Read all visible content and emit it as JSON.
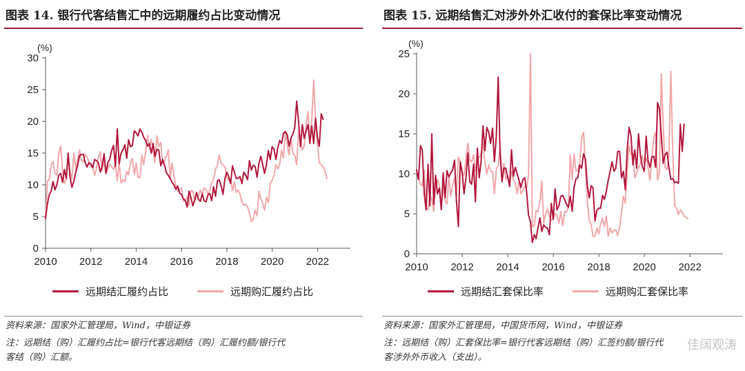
{
  "left": {
    "title": "图表 14. 银行代客结售汇中的远期履约占比变动情况",
    "source": "资料来源：国家外汇管理局，Wind，中银证券",
    "note_line1": "注：远期结（购）汇履约占比=银行代客远期结（购）汇履约额/银行代",
    "note_line2": "客结（购）汇额。"
  },
  "right": {
    "title": "图表 15. 远期结售汇对涉外外汇收付的套保比率变动情况",
    "source": "资料来源：国家外汇管理局，中国货币网，Wind，中银证券",
    "note_line1": "注：远期结（购）汇套保比率=银行代客远期结（购）汇签约额/银行代",
    "note_line2": "客涉外外币收入（支出）。"
  },
  "watermark": "佳阔观涛",
  "chart_data": [
    {
      "type": "line",
      "ylabel": "(%)",
      "ylim": [
        0,
        30
      ],
      "yticks": [
        0,
        5,
        10,
        15,
        20,
        25,
        30
      ],
      "xlim": [
        2010,
        2023.45
      ],
      "xticks": [
        2010,
        2012,
        2014,
        2016,
        2018,
        2020,
        2022
      ],
      "grid": false,
      "legend_position": "bottom",
      "series": [
        {
          "name": "远期结汇履约占比",
          "color": "#b0173b",
          "x_start": 2010,
          "x_step": 0.0833,
          "values": [
            4.7,
            7,
            8.5,
            9,
            10.5,
            9.2,
            10,
            11.5,
            11.8,
            10.4,
            12.4,
            11,
            15,
            11.2,
            9.6,
            10.6,
            12,
            13,
            14.6,
            14.8,
            14.8,
            13.5,
            12.8,
            13.5,
            13.3,
            12.7,
            14,
            13.8,
            13.5,
            12,
            13,
            14.9,
            11.8,
            13.5,
            14,
            15.4,
            16.2,
            12.9,
            18.8,
            13.3,
            15,
            15.5,
            16.3,
            14.2,
            17.1,
            16,
            16.2,
            18.5,
            18.2,
            17.7,
            18.8,
            18.3,
            17.5,
            17,
            16.1,
            16.5,
            15,
            16.5,
            14.5,
            15.6,
            15.5,
            13,
            14,
            13.1,
            11.9,
            11.5,
            11,
            10.4,
            10,
            9.3,
            9.8,
            8.7,
            8.5,
            7.8,
            7.5,
            6.5,
            9,
            8,
            6.7,
            7.6,
            8.8,
            7.7,
            7.4,
            8.6,
            7.5,
            7.3,
            8.4,
            8.6,
            7.5,
            9.7,
            8.2,
            10.6,
            10.8,
            9.8,
            8.5,
            11,
            12,
            11.3,
            10.2,
            13,
            12,
            11,
            11,
            11.3,
            10.2,
            12,
            11.5,
            10.8,
            13.8,
            12.3,
            13.1,
            12.9,
            11.2,
            13.3,
            14.5,
            13.2,
            11.8,
            13.2,
            15.4,
            14,
            16,
            15.6,
            14,
            15.8,
            17,
            16.5,
            18.1,
            18.4,
            17.9,
            16.1,
            17.4,
            18,
            19,
            23.2,
            20,
            16,
            19.5,
            17.3,
            18.5,
            19.5,
            16.5,
            19.3,
            16.5,
            20.5,
            17.5,
            16.1,
            21.2,
            20.3
          ]
        },
        {
          "name": "远期购汇履约占比",
          "color": "#f1a7a9",
          "x_start": 2010,
          "x_step": 0.0833,
          "values": [
            4.8,
            10.5,
            10.9,
            13.2,
            13.7,
            11.8,
            11.5,
            15,
            16.1,
            12.3,
            10.2,
            10.8,
            14.3,
            12,
            11,
            15,
            12.5,
            14,
            15.5,
            13.9,
            13.6,
            14.8,
            14.3,
            13.6,
            12.8,
            13,
            11.5,
            12.6,
            14.3,
            15.2,
            12.2,
            13.9,
            11.7,
            12.5,
            13.3,
            12.8,
            12.5,
            13.2,
            10.7,
            13.4,
            10.3,
            10.8,
            10.5,
            12.1,
            11.6,
            13.5,
            14.2,
            11.6,
            13.4,
            11.2,
            11.1,
            14.7,
            13.2,
            15.2,
            17.8,
            15.7,
            17.2,
            15.3,
            13.5,
            17.7,
            16,
            16.7,
            13.3,
            13.8,
            14.5,
            15.5,
            11,
            13.4,
            11.5,
            9.8,
            8.9,
            9.2,
            9.5,
            7.4,
            7.6,
            8.1,
            6.8,
            9.1,
            9,
            7.4,
            8.5,
            8.2,
            9.2,
            8.5,
            9.5,
            9.3,
            8.5,
            9.1,
            10.3,
            10.8,
            12.5,
            13,
            14.7,
            13.5,
            13.1,
            12.8,
            11.2,
            10.7,
            10.8,
            9.1,
            10.5,
            8.8,
            9.2,
            8.5,
            7.3,
            6.8,
            6.9,
            6.5,
            5.7,
            4.2,
            4.6,
            6,
            5.1,
            9,
            7.8,
            7.1,
            6,
            8,
            7.2,
            10.2,
            10.7,
            11.5,
            13.2,
            12.5,
            13.2,
            15.5,
            14.2,
            18.4,
            16.5,
            14.7,
            17.4,
            15,
            14.7,
            13.2,
            18.5,
            17.3,
            15.5,
            16.1,
            19.5,
            21.5,
            17.3,
            20.3,
            26.5,
            19.8,
            16.5,
            13.5,
            13.2,
            12.8,
            12.2,
            11
          ]
        }
      ]
    },
    {
      "type": "line",
      "ylabel": "(%)",
      "ylim": [
        0,
        25
      ],
      "yticks": [
        0,
        5,
        10,
        15,
        20,
        25
      ],
      "xlim": [
        2010,
        2023.45
      ],
      "xticks": [
        2010,
        2012,
        2014,
        2016,
        2018,
        2020,
        2022
      ],
      "grid": false,
      "legend_position": "bottom",
      "series": [
        {
          "name": "远期结汇套保比率",
          "color": "#b0173b",
          "x_start": 2010,
          "x_step": 0.0833,
          "values": [
            10.5,
            9.3,
            13.5,
            13,
            7.5,
            5.5,
            11.2,
            6,
            15,
            6.2,
            9.8,
            7.5,
            8.2,
            5.5,
            10.1,
            7,
            10.4,
            9.6,
            10.1,
            10.5,
            11.7,
            6.6,
            3.4,
            11.5,
            10.2,
            7.5,
            9.5,
            12.6,
            9,
            8.7,
            11.2,
            6.5,
            13.2,
            9.5,
            11.6,
            16,
            12.9,
            15.8,
            15.2,
            13.8,
            15.7,
            11.5,
            14.7,
            22.1,
            12.5,
            9,
            10.7,
            10.7,
            9.6,
            8.4,
            13,
            9.7,
            10.8,
            10,
            9.2,
            8.3,
            9.3,
            9.5,
            7.7,
            4.8,
            4,
            1.4,
            2.4,
            1.9,
            3.3,
            4.5,
            2.8,
            3.6,
            3.3,
            3.2,
            2.4,
            6.3,
            4.3,
            8.1,
            5.5,
            6,
            7.2,
            7.3,
            6.8,
            6.2,
            5.8,
            7.2,
            5.3,
            8.3,
            9.4,
            9.5,
            11.1,
            10.7,
            12.5,
            11.8,
            8.5,
            7,
            8.5,
            8.2,
            4.1,
            5.4,
            5.7,
            5.7,
            7.3,
            6.8,
            7.8,
            9.2,
            10.3,
            11.5,
            10.3,
            10.7,
            12.8,
            12.8,
            9.5,
            10.3,
            8,
            13,
            15.8,
            14.8,
            11.1,
            13,
            10.7,
            15,
            12.2,
            10.9,
            10.3,
            14.7,
            11.6,
            10.8,
            12.1,
            12.2,
            10.8,
            18.9,
            18.1,
            14.8,
            11.3,
            12.4,
            12.7,
            10.8,
            9.3,
            9.4,
            8.9,
            9,
            8.8,
            16.2,
            12.8,
            16.2
          ]
        },
        {
          "name": "远期购汇套保比率",
          "color": "#f1a7a9",
          "x_start": 2010,
          "x_step": 0.0833,
          "values": [
            10.3,
            9.5,
            8.7,
            8.5,
            10.5,
            5.8,
            5.5,
            7.3,
            6.8,
            5.3,
            8.2,
            9.3,
            8.5,
            5.7,
            8.5,
            6.7,
            6.2,
            9.8,
            7.2,
            8.6,
            9.5,
            7.2,
            12.1,
            11.5,
            10,
            9.8,
            11.8,
            13.8,
            11.7,
            11.5,
            12.4,
            10.3,
            12.3,
            12,
            12.5,
            13.8,
            11.4,
            10,
            11.1,
            10.3,
            10.3,
            7.5,
            10.6,
            11,
            13.4,
            9.5,
            11.3,
            9.3,
            9.8,
            8.4,
            10.3,
            9.2,
            8.9,
            7.5,
            9.2,
            7.5,
            7.9,
            8.4,
            8.2,
            9.8,
            25.5,
            3.4,
            3.5,
            5.4,
            5.3,
            6.5,
            9.1,
            3.8,
            5,
            5.6,
            4.6,
            4.2,
            4.4,
            5,
            4.8,
            3.8,
            5.3,
            3.5,
            5.3,
            5.2,
            5.9,
            12.4,
            9.3,
            12.5,
            10.3,
            10.5,
            11.5,
            14.5,
            15.2,
            10.6,
            6.5,
            4.2,
            3.7,
            2.2,
            2.2,
            3.2,
            2.5,
            3.7,
            4.5,
            3.4,
            4.7,
            2.2,
            3.2,
            2.6,
            2.9,
            3,
            2.3,
            3.3,
            5.2,
            7.2,
            6.3,
            10.5,
            13.5,
            12.4,
            12.5,
            9.5,
            10.1,
            10.7,
            11.3,
            12.3,
            11.2,
            12,
            10.7,
            9.2,
            12,
            14.5,
            15.2,
            9.2,
            10.2,
            22.5,
            15.9,
            10.8,
            10.5,
            12.4,
            22.8,
            13,
            6,
            5.7,
            4.9,
            5.5,
            5.2,
            4.7,
            4.5,
            4.4
          ]
        }
      ]
    }
  ]
}
